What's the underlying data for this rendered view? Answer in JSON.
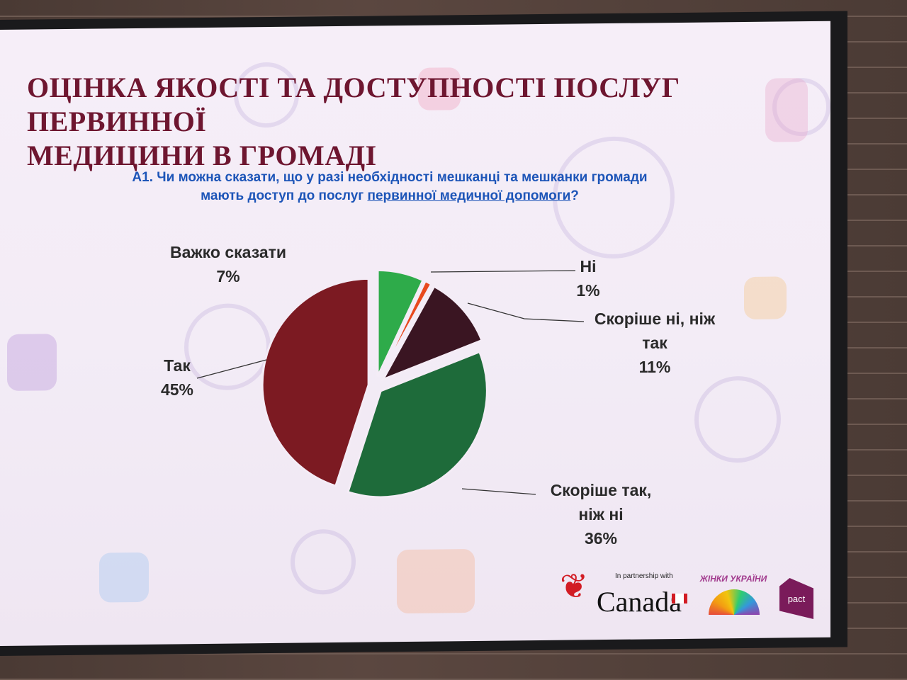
{
  "slide": {
    "title_line1": "ОЦІНКА ЯКОСТІ ТА ДОСТУПНОСТІ ПОСЛУГ ПЕРВИННОЇ",
    "title_line2": "МЕДИЦИНИ В ГРОМАДІ",
    "question_line1": "А1. Чи можна сказати, що у разі необхідності мешканці та мешканки громади",
    "question_line2_prefix": "мають доступ до послуг ",
    "question_line2_underlined": "первинної медичної допомоги",
    "question_line2_suffix": "?"
  },
  "chart_data": {
    "type": "pie",
    "title": "",
    "slices": [
      {
        "label": "Важко сказати",
        "value": 7,
        "display": "7%",
        "color": "#2eab4a"
      },
      {
        "label": "Ні",
        "value": 1,
        "display": "1%",
        "color": "#e8491d"
      },
      {
        "label": "Скоріше ні, ніж так",
        "label_lines": [
          "Скоріше ні, ніж",
          "так"
        ],
        "value": 11,
        "display": "11%",
        "color": "#3a1522"
      },
      {
        "label": "Скоріше так, ніж ні",
        "label_lines": [
          "Скоріше так,",
          "ніж ні"
        ],
        "value": 36,
        "display": "36%",
        "color": "#1e6b3a"
      },
      {
        "label": "Так",
        "value": 45,
        "display": "45%",
        "color": "#7c1a22"
      }
    ]
  },
  "logos": {
    "partnership": "In partnership with",
    "canada": "Canada",
    "women_ukraine": "ЖІНКИ УКРАЇНИ",
    "pact": "pact"
  }
}
